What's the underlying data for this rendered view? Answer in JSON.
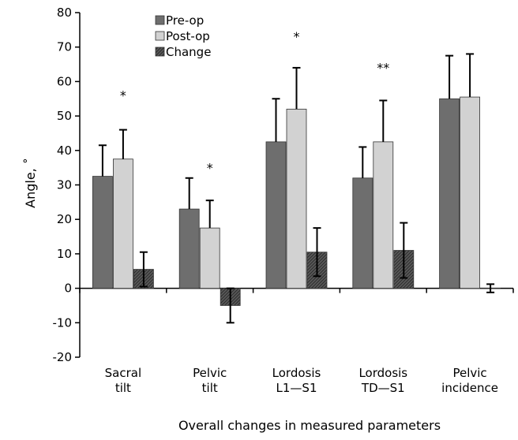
{
  "chart_data": {
    "type": "bar",
    "title": "",
    "xlabel": "Overall changes in measured parameters",
    "ylabel": "Angle, ˚",
    "ylim": [
      -20,
      80
    ],
    "yticks": [
      -20,
      -10,
      0,
      10,
      20,
      30,
      40,
      50,
      60,
      70,
      80
    ],
    "categories": [
      [
        "Sacral",
        "tilt"
      ],
      [
        "Pelvic",
        "tilt"
      ],
      [
        "Lordosis",
        "L1—S1"
      ],
      [
        "Lordosis",
        "TD—S1"
      ],
      [
        "Pelvic",
        "incidence"
      ]
    ],
    "series": [
      {
        "name": "Pre-op",
        "values": [
          32.5,
          23,
          42.5,
          32,
          55
        ],
        "errors": [
          9,
          9,
          12.5,
          9,
          12.5
        ],
        "color": "#6e6e6e"
      },
      {
        "name": "Post-op",
        "values": [
          37.5,
          17.5,
          52,
          42.5,
          55.5
        ],
        "errors": [
          8.5,
          8,
          12,
          12,
          12.5
        ],
        "color": "#d2d2d2"
      },
      {
        "name": "Change",
        "values": [
          5.5,
          -5,
          10.5,
          11,
          0
        ],
        "errors": [
          5,
          5,
          7,
          8,
          1.2
        ],
        "color": "#4a4a4a"
      }
    ],
    "annotations": [
      {
        "category": 0,
        "text": "*",
        "y": 57
      },
      {
        "category": 1,
        "text": "*",
        "y": 36
      },
      {
        "category": 2,
        "text": "*",
        "y": 74
      },
      {
        "category": 3,
        "text": "**",
        "y": 65
      }
    ],
    "legend_position": "top-left",
    "grid": false
  }
}
